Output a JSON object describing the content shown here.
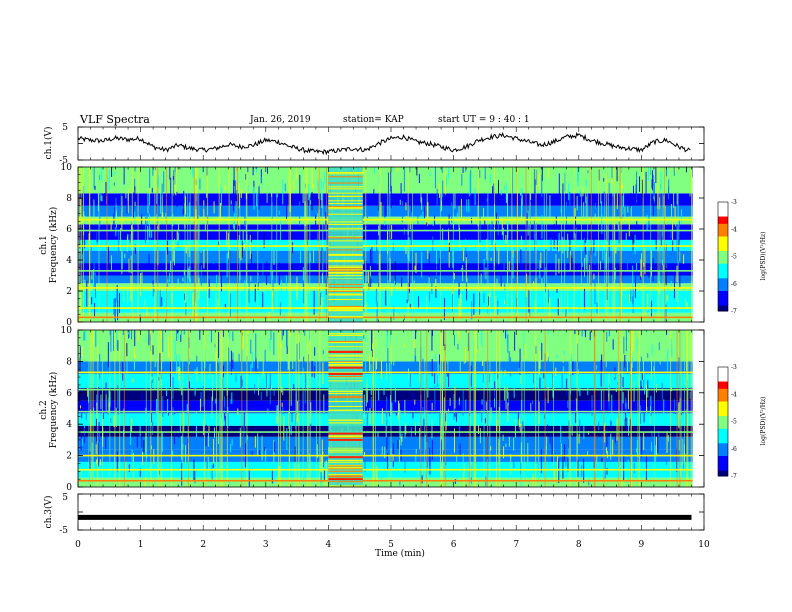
{
  "header": {
    "title": "VLF Spectra",
    "date": "Jan. 26, 2019",
    "station": "station= KAP",
    "start": "start UT =  9 : 40 : 1"
  },
  "chart_data": [
    {
      "type": "line",
      "panel": "ch1-waveform",
      "ylabel": "ch.1(V)",
      "ylim": [
        -5,
        5
      ],
      "yticks": [
        -5,
        5
      ],
      "xlim": [
        0,
        10
      ],
      "x": [
        0,
        0.2,
        0.4,
        0.6,
        0.8,
        1.0,
        1.2,
        1.4,
        1.6,
        1.8,
        2.0,
        2.2,
        2.4,
        2.6,
        2.8,
        3.0,
        3.2,
        3.4,
        3.6,
        3.8,
        4.0,
        4.2,
        4.4,
        4.6,
        4.8,
        5.0,
        5.2,
        5.4,
        5.6,
        5.8,
        6.0,
        6.2,
        6.4,
        6.6,
        6.8,
        7.0,
        7.2,
        7.4,
        7.6,
        7.8,
        8.0,
        8.2,
        8.4,
        8.6,
        8.8,
        9.0,
        9.2,
        9.4,
        9.6,
        9.8
      ],
      "values": [
        1.5,
        1.0,
        0.8,
        1.6,
        1.2,
        1.5,
        -1.0,
        -2.0,
        -0.5,
        -1.5,
        -2.0,
        -1.5,
        -0.3,
        -1.0,
        -0.5,
        1.0,
        0.5,
        -1.0,
        -2.0,
        -2.5,
        -2.5,
        -2.0,
        -1.5,
        -2.0,
        0.0,
        1.5,
        2.0,
        0.5,
        0.0,
        -1.0,
        -2.0,
        -1.0,
        1.0,
        2.0,
        2.5,
        1.5,
        0.5,
        -0.5,
        0.5,
        2.0,
        2.5,
        1.0,
        0.0,
        -1.0,
        -1.5,
        -2.0,
        0.5,
        1.0,
        -1.0,
        -2.5
      ]
    },
    {
      "type": "heatmap",
      "panel": "ch1-spectrogram",
      "ylabel": "ch.1",
      "ylabel2": "Frequency (kHz)",
      "ylim": [
        0,
        10
      ],
      "yticks": [
        0,
        2,
        4,
        6,
        8,
        10
      ],
      "xlim": [
        0,
        10
      ],
      "zlabel": "log(PSD)(V²/Hz)",
      "zlim": [
        -7,
        -3
      ],
      "zticks": [
        -3,
        -4,
        -5,
        -6,
        -7
      ],
      "event_interval_min": [
        4.0,
        4.55
      ],
      "bands": [
        {
          "f": [
            0,
            0.6
          ],
          "level": -5.2
        },
        {
          "f": [
            0.6,
            2.0
          ],
          "level": -5.6
        },
        {
          "f": [
            2.0,
            2.5
          ],
          "level": -4.8
        },
        {
          "f": [
            2.5,
            3.0
          ],
          "level": -6.2
        },
        {
          "f": [
            3.0,
            3.8
          ],
          "level": -6.6
        },
        {
          "f": [
            3.8,
            4.6
          ],
          "level": -6.0
        },
        {
          "f": [
            4.6,
            5.3
          ],
          "level": -5.6
        },
        {
          "f": [
            5.3,
            6.3
          ],
          "level": -6.6
        },
        {
          "f": [
            6.3,
            6.8
          ],
          "level": -4.9
        },
        {
          "f": [
            6.8,
            7.5
          ],
          "level": -5.8
        },
        {
          "f": [
            7.5,
            8.3
          ],
          "level": -6.3
        },
        {
          "f": [
            8.3,
            10
          ],
          "level": -5.1
        }
      ],
      "lines_khz": [
        {
          "f": 0.3,
          "level": -3.9
        },
        {
          "f": 0.9,
          "level": -4.4
        },
        {
          "f": 2.2,
          "level": -4.6
        },
        {
          "f": 3.3,
          "level": -4.8
        },
        {
          "f": 4.9,
          "level": -4.7
        },
        {
          "f": 5.9,
          "level": -4.9
        },
        {
          "f": 6.6,
          "level": -4.6
        }
      ]
    },
    {
      "type": "heatmap",
      "panel": "ch2-spectrogram",
      "ylabel": "ch.2",
      "ylabel2": "Frequency (kHz)",
      "ylim": [
        0,
        10
      ],
      "yticks": [
        0,
        2,
        4,
        6,
        8,
        10
      ],
      "xlim": [
        0,
        10
      ],
      "zlabel": "log(PSD)(V²/Hz)",
      "zlim": [
        -7,
        -3
      ],
      "zticks": [
        -3,
        -4,
        -5,
        -6,
        -7
      ],
      "event_interval_min": [
        4.0,
        4.55
      ],
      "bands": [
        {
          "f": [
            0,
            0.6
          ],
          "level": -5.0
        },
        {
          "f": [
            0.6,
            1.6
          ],
          "level": -5.5
        },
        {
          "f": [
            1.6,
            2.4
          ],
          "level": -5.9
        },
        {
          "f": [
            2.4,
            3.2
          ],
          "level": -6.2
        },
        {
          "f": [
            3.2,
            3.9
          ],
          "level": -6.9
        },
        {
          "f": [
            3.9,
            4.7
          ],
          "level": -5.7
        },
        {
          "f": [
            4.7,
            5.5
          ],
          "level": -6.3
        },
        {
          "f": [
            5.5,
            6.3
          ],
          "level": -6.8
        },
        {
          "f": [
            6.3,
            7.2
          ],
          "level": -5.6
        },
        {
          "f": [
            7.2,
            8.0
          ],
          "level": -6.0
        },
        {
          "f": [
            8.0,
            10
          ],
          "level": -5.1
        }
      ],
      "lines_khz": [
        {
          "f": 0.4,
          "level": -4.0
        },
        {
          "f": 1.1,
          "level": -4.6
        },
        {
          "f": 2.0,
          "level": -4.5
        },
        {
          "f": 3.5,
          "level": -4.8
        },
        {
          "f": 4.8,
          "level": -4.9
        },
        {
          "f": 6.2,
          "level": -4.8
        },
        {
          "f": 7.3,
          "level": -4.7
        }
      ],
      "event_lines_khz": [
        0.5,
        1.9,
        3.0,
        3.4,
        7.2,
        7.6,
        8.6
      ]
    },
    {
      "type": "line",
      "panel": "ch3-waveform",
      "ylabel": "ch.3(V)",
      "ylim": [
        -5,
        5
      ],
      "yticks": [
        -5,
        5
      ],
      "xlim": [
        0,
        10
      ],
      "x": [
        0,
        9.8
      ],
      "values": [
        -1.5,
        -1.5
      ]
    }
  ],
  "x_axis": {
    "label": "Time (min)",
    "ticks": [
      "0",
      "1",
      "2",
      "3",
      "4",
      "5",
      "6",
      "7",
      "8",
      "9",
      "10"
    ]
  },
  "colormap": [
    "#00007f",
    "#0000ff",
    "#0080ff",
    "#00ffff",
    "#80ff80",
    "#ffff00",
    "#ff8000",
    "#ff0000",
    "#7f0000"
  ]
}
